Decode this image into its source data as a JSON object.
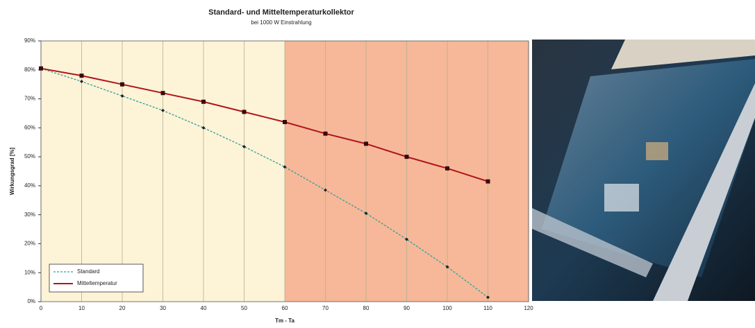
{
  "chart_data": {
    "type": "line",
    "title": "Standard- und Mitteltemperaturkollektor",
    "subtitle": "bei 1000 W Einstrahlung",
    "x_label": "Tm - Ta",
    "y_label": "Wirkungsgrad [%]",
    "x": [
      0,
      10,
      20,
      30,
      40,
      50,
      60,
      70,
      80,
      90,
      100,
      110
    ],
    "series": [
      {
        "name": "Standard",
        "color": "#2e9e9e",
        "dash": true,
        "marker": "diamond",
        "values": [
          80.5,
          76,
          71,
          66,
          60,
          53.5,
          46.5,
          38.5,
          30.5,
          21.5,
          12,
          1.5
        ]
      },
      {
        "name": "Mitteltemperatur",
        "color": "#b0141c",
        "dash": false,
        "marker": "square",
        "values": [
          80.5,
          78,
          75,
          72,
          69,
          65.5,
          62,
          58,
          54.5,
          50,
          46,
          41.5
        ]
      }
    ],
    "regions": [
      {
        "from": 0,
        "to": 60,
        "color": "#fdf3d6"
      },
      {
        "from": 60,
        "to": 120,
        "color": "#f6b898"
      }
    ],
    "xlim": [
      0,
      120
    ],
    "xticks": [
      0,
      10,
      20,
      30,
      40,
      50,
      60,
      70,
      80,
      90,
      100,
      110,
      120
    ],
    "ylim": [
      0,
      90
    ],
    "yticks": [
      {
        "value": 0,
        "label": "0%"
      },
      {
        "value": 10,
        "label": "10%"
      },
      {
        "value": 20,
        "label": "20%"
      },
      {
        "value": 30,
        "label": "30%"
      },
      {
        "value": 40,
        "label": "40%"
      },
      {
        "value": 50,
        "label": "50%"
      },
      {
        "value": 60,
        "label": "60%"
      },
      {
        "value": 70,
        "label": "70%"
      },
      {
        "value": 80,
        "label": "80%"
      },
      {
        "value": 90,
        "label": "90%"
      }
    ],
    "grid": true,
    "legend": "bottom-left"
  }
}
